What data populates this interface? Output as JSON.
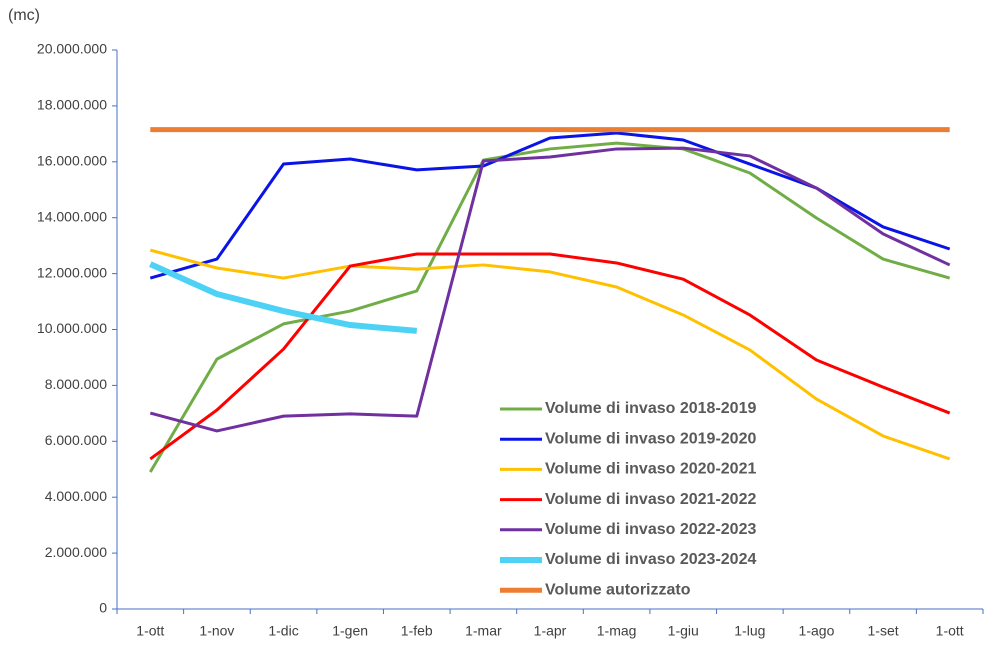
{
  "chart_data": {
    "type": "line",
    "y_unit": "(mc)",
    "categories": [
      "1-ott",
      "1-nov",
      "1-dic",
      "1-gen",
      "1-feb",
      "1-mar",
      "1-apr",
      "1-mag",
      "1-giu",
      "1-lug",
      "1-ago",
      "1-set",
      "1-ott"
    ],
    "series": [
      {
        "name": "Volume di invaso 2018-2019",
        "color": "#70ad47",
        "values": [
          4900000,
          8940000,
          10200000,
          10660000,
          11380000,
          16060000,
          16460000,
          16670000,
          16460000,
          15600000,
          13990000,
          12520000,
          11840000
        ]
      },
      {
        "name": "Volume di invaso 2019-2020",
        "color": "#0a14e6",
        "values": [
          11840000,
          12520000,
          15920000,
          16100000,
          15710000,
          15850000,
          16850000,
          17030000,
          16780000,
          15920000,
          15060000,
          13670000,
          12880000
        ]
      },
      {
        "name": "Volume di invaso 2020-2021",
        "color": "#ffc000",
        "values": [
          12840000,
          12200000,
          11840000,
          12270000,
          12160000,
          12310000,
          12060000,
          11520000,
          10520000,
          9270000,
          7510000,
          6190000,
          5370000
        ]
      },
      {
        "name": "Volume di invaso 2021-2022",
        "color": "#ff0000",
        "values": [
          5370000,
          7120000,
          9300000,
          12270000,
          12700000,
          12700000,
          12700000,
          12380000,
          11800000,
          10520000,
          8910000,
          7940000,
          7010000
        ]
      },
      {
        "name": "Volume di invaso 2022-2023",
        "color": "#7030a0",
        "values": [
          7010000,
          6370000,
          6900000,
          6980000,
          6900000,
          16030000,
          16170000,
          16460000,
          16490000,
          16210000,
          15060000,
          13420000,
          12310000
        ]
      },
      {
        "name": "Volume di invaso 2023-2024",
        "color": "#4dd2f5",
        "values": [
          12340000,
          11270000,
          10660000,
          10160000,
          9950000,
          null,
          null,
          null,
          null,
          null,
          null,
          null,
          null
        ]
      },
      {
        "name": "Volume autorizzato",
        "color": "#ed7d31",
        "values": [
          17150000,
          17150000,
          17150000,
          17150000,
          17150000,
          17150000,
          17150000,
          17150000,
          17150000,
          17150000,
          17150000,
          17150000,
          17150000
        ]
      }
    ],
    "ylim": [
      0,
      20000000
    ],
    "yticks": [
      0,
      {
        "value": 2000000,
        "label": "2.000.000"
      },
      {
        "value": 4000000,
        "label": "4.000.000"
      },
      {
        "value": 6000000,
        "label": "6.000.000"
      },
      {
        "value": 8000000,
        "label": "8.000.000"
      },
      {
        "value": 10000000,
        "label": "10.000.000"
      },
      {
        "value": 12000000,
        "label": "12.000.000"
      },
      {
        "value": 14000000,
        "label": "14.000.000"
      },
      {
        "value": 16000000,
        "label": "16.000.000"
      },
      {
        "value": 18000000,
        "label": "18.000.000"
      },
      {
        "value": 20000000,
        "label": "20.000.000"
      }
    ],
    "grid": false,
    "legend": "lower right"
  }
}
